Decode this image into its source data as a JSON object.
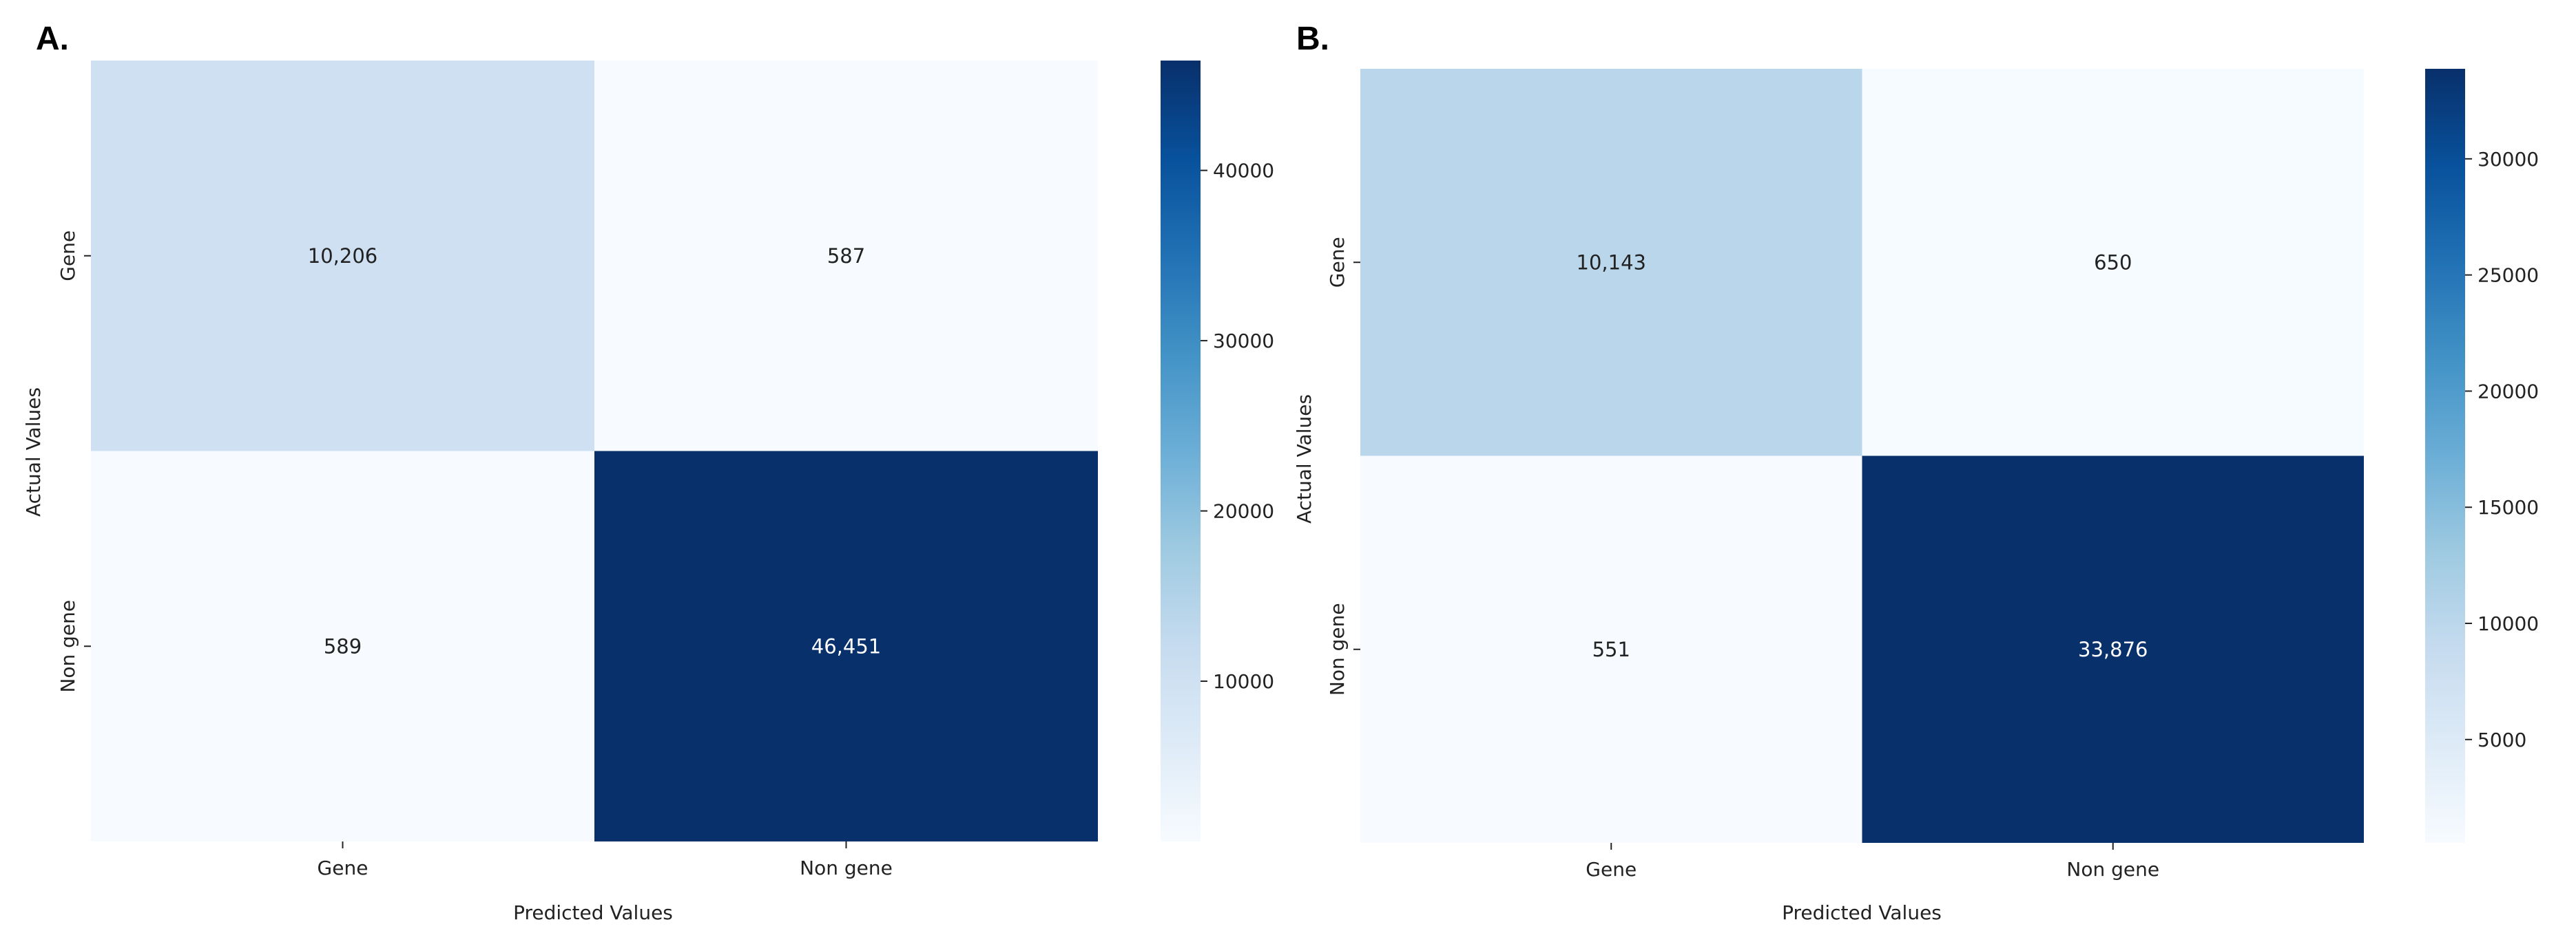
{
  "chart_data": [
    {
      "type": "heatmap",
      "panel_label": "A.",
      "title": "",
      "xlabel": "Predicted Values",
      "ylabel": "Actual Values",
      "x_categories": [
        "Gene",
        "Non gene"
      ],
      "y_categories": [
        "Gene",
        "Non gene"
      ],
      "values": [
        [
          10206,
          587
        ],
        [
          589,
          46451
        ]
      ],
      "cell_labels": [
        [
          "10,206",
          "587"
        ],
        [
          "589",
          "46,451"
        ]
      ],
      "colorbar": {
        "range": [
          587,
          46451
        ],
        "ticks": [
          10000,
          20000,
          30000,
          40000
        ],
        "tick_labels": [
          "10000",
          "20000",
          "30000",
          "40000"
        ],
        "colormap": "Blues"
      }
    },
    {
      "type": "heatmap",
      "panel_label": "B.",
      "title": "",
      "xlabel": "Predicted Values",
      "ylabel": "Actual Values",
      "x_categories": [
        "Gene",
        "Non gene"
      ],
      "y_categories": [
        "Gene",
        "Non gene"
      ],
      "values": [
        [
          10143,
          650
        ],
        [
          551,
          33876
        ]
      ],
      "cell_labels": [
        [
          "10,143",
          "650"
        ],
        [
          "551",
          "33,876"
        ]
      ],
      "colorbar": {
        "range": [
          551,
          33876
        ],
        "ticks": [
          5000,
          10000,
          15000,
          20000,
          25000,
          30000
        ],
        "tick_labels": [
          "5000",
          "10000",
          "15000",
          "20000",
          "25000",
          "30000"
        ],
        "colormap": "Blues"
      }
    }
  ],
  "colors": {
    "blues": [
      "#f7fbff",
      "#deebf7",
      "#c6dbef",
      "#9ecae1",
      "#6baed6",
      "#4292c6",
      "#2171b5",
      "#08519c",
      "#08306b"
    ],
    "text_dark": "#222222",
    "text_light": "#ffffff"
  }
}
